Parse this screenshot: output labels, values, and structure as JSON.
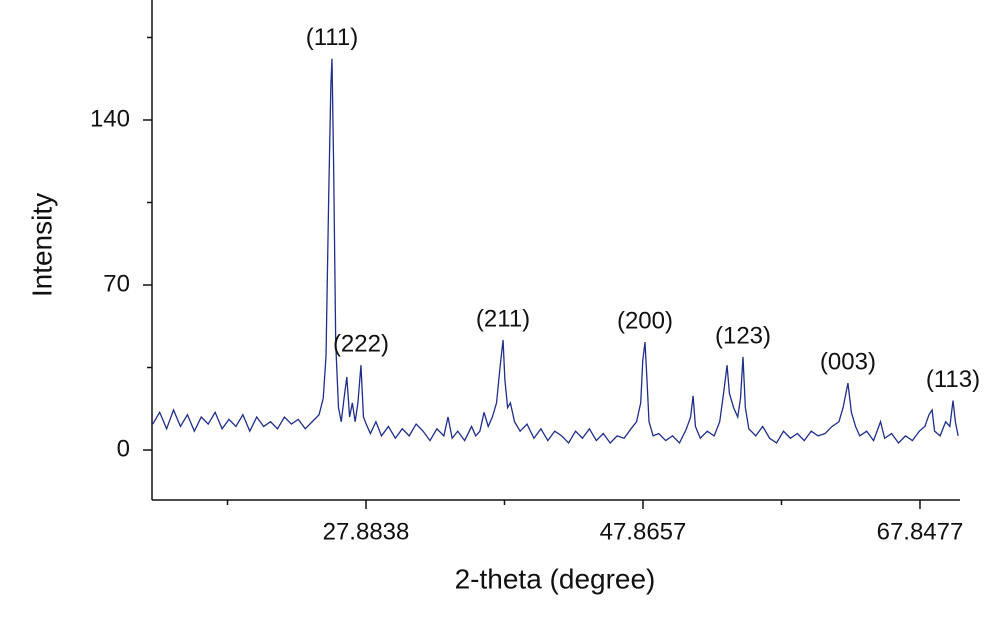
{
  "chart_data": {
    "type": "line",
    "xlabel": "2-theta (degree)",
    "ylabel": "Intensity",
    "xlim": [
      12.446,
      70.734
    ],
    "ylim": [
      -21.2,
      190.9
    ],
    "xticks": [
      27.8838,
      47.8657,
      67.8477
    ],
    "xminorticks": [
      17.8928,
      37.8748,
      57.8567
    ],
    "yticks": [
      0,
      70,
      140
    ],
    "yminorticks": [
      35,
      105,
      175
    ],
    "series": [
      {
        "color": "#1f2e8a",
        "x": [
          12.5,
          13.0,
          13.5,
          14.0,
          14.5,
          15.0,
          15.5,
          16.0,
          16.5,
          17.0,
          17.5,
          18.0,
          18.5,
          19.0,
          19.5,
          20.0,
          20.5,
          21.0,
          21.5,
          22.0,
          22.5,
          23.0,
          23.5,
          24.0,
          24.5,
          24.8,
          25.0,
          25.2,
          25.35,
          25.43,
          25.55,
          25.7,
          25.9,
          26.1,
          26.3,
          26.5,
          26.7,
          26.9,
          27.1,
          27.3,
          27.52,
          27.7,
          27.9,
          28.2,
          28.6,
          29.0,
          29.5,
          30.0,
          30.5,
          31.0,
          31.5,
          32.0,
          32.5,
          33.0,
          33.5,
          33.8,
          34.1,
          34.5,
          35.0,
          35.5,
          35.8,
          36.1,
          36.4,
          36.7,
          37.0,
          37.3,
          37.55,
          37.77,
          37.9,
          38.1,
          38.3,
          38.6,
          39.0,
          39.5,
          40.0,
          40.5,
          41.0,
          41.5,
          42.0,
          42.5,
          43.0,
          43.5,
          44.0,
          44.5,
          45.0,
          45.5,
          46.0,
          46.5,
          47.0,
          47.4,
          47.7,
          47.85,
          48.01,
          48.15,
          48.3,
          48.6,
          49.0,
          49.5,
          50.0,
          50.5,
          51.0,
          51.3,
          51.48,
          51.65,
          52.0,
          52.5,
          53.0,
          53.4,
          53.7,
          53.93,
          54.1,
          54.4,
          54.7,
          54.9,
          55.08,
          55.25,
          55.5,
          56.0,
          56.5,
          57.0,
          57.5,
          58.0,
          58.5,
          59.0,
          59.5,
          60.0,
          60.5,
          61.0,
          61.5,
          62.0,
          62.3,
          62.65,
          62.9,
          63.2,
          63.5,
          64.0,
          64.5,
          65.0,
          65.3,
          65.8,
          66.3,
          66.8,
          67.3,
          67.8,
          68.2,
          68.5,
          68.72,
          68.9,
          69.3,
          69.7,
          70.0,
          70.23,
          70.4,
          70.6
        ],
        "values": [
          11,
          16,
          9,
          17,
          10,
          15,
          8,
          14,
          11,
          16,
          9,
          13,
          10,
          15,
          8,
          14,
          10,
          12,
          9,
          14,
          11,
          13,
          9,
          12,
          15,
          22,
          40,
          110,
          155,
          166,
          120,
          45,
          18,
          12,
          22,
          31,
          14,
          20,
          12,
          20,
          36,
          14,
          11,
          7,
          12,
          6,
          10,
          5,
          9,
          6,
          11,
          8,
          4,
          9,
          6,
          14,
          5,
          8,
          4,
          10,
          6,
          8,
          16,
          10,
          14,
          20,
          35,
          46.7,
          30,
          18,
          20,
          12,
          8,
          11,
          5,
          9,
          4,
          8,
          6,
          3,
          8,
          5,
          9,
          4,
          7,
          3,
          6,
          5,
          9,
          12,
          20,
          38,
          45.8,
          30,
          12,
          6,
          7,
          4,
          6,
          3,
          9,
          14,
          23,
          10,
          5,
          8,
          6,
          12,
          25,
          36,
          24,
          18,
          14,
          22,
          39.5,
          18,
          9,
          6,
          10,
          5,
          3,
          8,
          5,
          7,
          4,
          8,
          6,
          7,
          10,
          12,
          18,
          28.4,
          16,
          10,
          6,
          8,
          4,
          12,
          5,
          7,
          3,
          6,
          4,
          8,
          10,
          15,
          17,
          8,
          6,
          12,
          10,
          21,
          12,
          6
        ]
      }
    ],
    "peaks": [
      {
        "label": "(111)",
        "x": 25.43
      },
      {
        "label": "(222)",
        "x": 27.52
      },
      {
        "label": "(211)",
        "x": 37.77
      },
      {
        "label": "(200)",
        "x": 48.01
      },
      {
        "label": "(123)",
        "x": 55.08
      },
      {
        "label": "(003)",
        "x": 62.65
      },
      {
        "label": "(113)",
        "x": 70.23
      }
    ]
  }
}
